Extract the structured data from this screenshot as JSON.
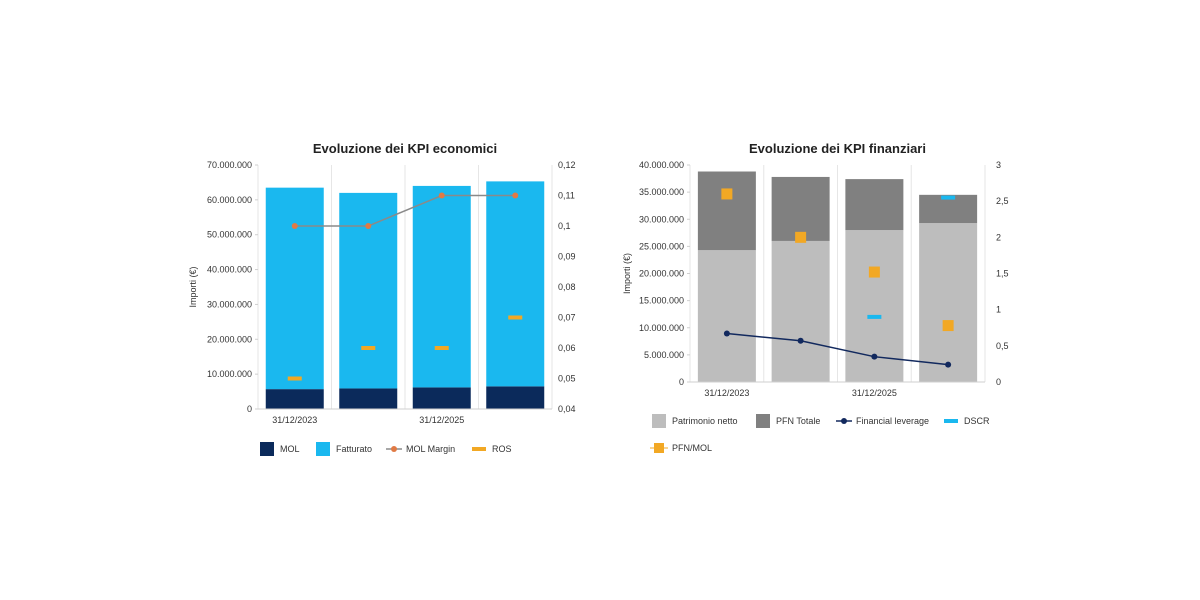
{
  "chart_data": [
    {
      "type": "bar",
      "title": "Evoluzione dei KPI economici",
      "ylabel": "Importi (€)",
      "ylim": [
        0,
        70000000
      ],
      "y2lim": [
        0.04,
        0.12
      ],
      "yticks": [
        "0",
        "10.000.000",
        "20.000.000",
        "30.000.000",
        "40.000.000",
        "50.000.000",
        "60.000.000",
        "70.000.000"
      ],
      "y2ticks": [
        "0,04",
        "0,05",
        "0,06",
        "0,07",
        "0,08",
        "0,09",
        "0,1",
        "0,11",
        "0,12"
      ],
      "categories": [
        "31/12/2023",
        "",
        "31/12/2025",
        ""
      ],
      "stacked": true,
      "grid": true,
      "legend_position": "bottom",
      "series": [
        {
          "name": "MOL",
          "kind": "bar",
          "axis": "left",
          "color": "#0b2a5b",
          "values": [
            5700000,
            5900000,
            6200000,
            6500000
          ]
        },
        {
          "name": "Fatturato",
          "kind": "bar",
          "axis": "left",
          "color": "#1ab8ef",
          "values": [
            57800000,
            56100000,
            57800000,
            58800000
          ]
        },
        {
          "name": "MOL Margin",
          "kind": "line",
          "axis": "right",
          "color": "#8a8a8a",
          "marker_color": "#e07a45",
          "values": [
            0.1,
            0.1,
            0.11,
            0.11
          ]
        },
        {
          "name": "ROS",
          "kind": "dash",
          "axis": "right",
          "color": "#f2a824",
          "values": [
            0.05,
            0.06,
            0.06,
            0.07
          ]
        }
      ]
    },
    {
      "type": "bar",
      "title": "Evoluzione dei KPI finanziari",
      "ylabel": "Importi (€)",
      "ylim": [
        0,
        40000000
      ],
      "y2lim": [
        0,
        3
      ],
      "yticks": [
        "0",
        "5.000.000",
        "10.000.000",
        "15.000.000",
        "20.000.000",
        "25.000.000",
        "30.000.000",
        "35.000.000",
        "40.000.000"
      ],
      "y2ticks": [
        "0",
        "0,5",
        "1",
        "1,5",
        "2",
        "2,5",
        "3"
      ],
      "categories": [
        "31/12/2023",
        "",
        "31/12/2025",
        ""
      ],
      "stacked": true,
      "grid": true,
      "legend_position": "bottom",
      "series": [
        {
          "name": "Patrimonio netto",
          "kind": "bar",
          "axis": "left",
          "color": "#bdbdbd",
          "values": [
            24300000,
            26000000,
            28000000,
            29300000
          ]
        },
        {
          "name": "PFN Totale",
          "kind": "bar",
          "axis": "left",
          "color": "#808080",
          "values": [
            14500000,
            11800000,
            9400000,
            5200000
          ]
        },
        {
          "name": "Financial leverage",
          "kind": "line",
          "axis": "right",
          "color": "#12295e",
          "values": [
            0.67,
            0.57,
            0.35,
            0.24
          ]
        },
        {
          "name": "DSCR",
          "kind": "dash",
          "axis": "right",
          "color": "#1ab8ef",
          "values": [
            null,
            null,
            0.9,
            2.55
          ]
        },
        {
          "name": "PFN/MOL",
          "kind": "square",
          "axis": "right",
          "color": "#f2a824",
          "values": [
            2.6,
            2.0,
            1.52,
            0.78
          ]
        }
      ]
    }
  ]
}
